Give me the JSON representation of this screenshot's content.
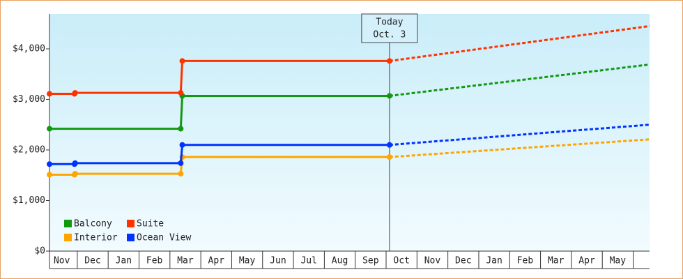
{
  "chart_data": {
    "type": "line",
    "xlim": [
      0.1,
      19.53
    ],
    "ylim": [
      0,
      4690
    ],
    "yticks": [
      {
        "value": 0,
        "label": "$0"
      },
      {
        "value": 1000,
        "label": "$1,000"
      },
      {
        "value": 2000,
        "label": "$2,000"
      },
      {
        "value": 3000,
        "label": "$3,000"
      },
      {
        "value": 4000,
        "label": "$4,000"
      }
    ],
    "xticks": [
      {
        "value": 0.5,
        "label": "Nov"
      },
      {
        "value": 1.5,
        "label": "Dec"
      },
      {
        "value": 2.5,
        "label": "Jan"
      },
      {
        "value": 3.5,
        "label": "Feb"
      },
      {
        "value": 4.5,
        "label": "Mar"
      },
      {
        "value": 5.5,
        "label": "Apr"
      },
      {
        "value": 6.5,
        "label": "May"
      },
      {
        "value": 7.5,
        "label": "Jun"
      },
      {
        "value": 8.5,
        "label": "Jul"
      },
      {
        "value": 9.5,
        "label": "Aug"
      },
      {
        "value": 10.5,
        "label": "Sep"
      },
      {
        "value": 11.5,
        "label": "Oct"
      },
      {
        "value": 12.5,
        "label": "Nov"
      },
      {
        "value": 13.5,
        "label": "Dec"
      },
      {
        "value": 14.5,
        "label": "Jan"
      },
      {
        "value": 15.5,
        "label": "Feb"
      },
      {
        "value": 16.5,
        "label": "Mar"
      },
      {
        "value": 17.5,
        "label": "Apr"
      },
      {
        "value": 18.5,
        "label": "May"
      }
    ],
    "annotation": {
      "x": 11.11,
      "lines": [
        "Today",
        "Oct. 3"
      ]
    },
    "legend": "lower left",
    "series": [
      {
        "name": "Balcony",
        "color": "#119911",
        "x": [
          0.1,
          4.35,
          4.4,
          11.11,
          19.53
        ],
        "values": [
          2420,
          2420,
          3070,
          3070,
          3690
        ]
      },
      {
        "name": "Suite",
        "color": "#ff3300",
        "x": [
          0.1,
          0.91,
          0.93,
          4.35,
          4.4,
          11.11,
          19.53
        ],
        "values": [
          3110,
          3110,
          3130,
          3130,
          3760,
          3760,
          4450
        ]
      },
      {
        "name": "Interior",
        "color": "#ffa500",
        "x": [
          0.1,
          0.91,
          0.93,
          4.35,
          4.4,
          11.11,
          19.53
        ],
        "values": [
          1510,
          1510,
          1530,
          1530,
          1860,
          1860,
          2210
        ]
      },
      {
        "name": "Ocean View",
        "color": "#0033ff",
        "x": [
          0.1,
          0.91,
          0.93,
          4.35,
          4.4,
          11.11,
          19.53
        ],
        "values": [
          1720,
          1720,
          1740,
          1740,
          2100,
          2100,
          2500
        ]
      }
    ]
  }
}
